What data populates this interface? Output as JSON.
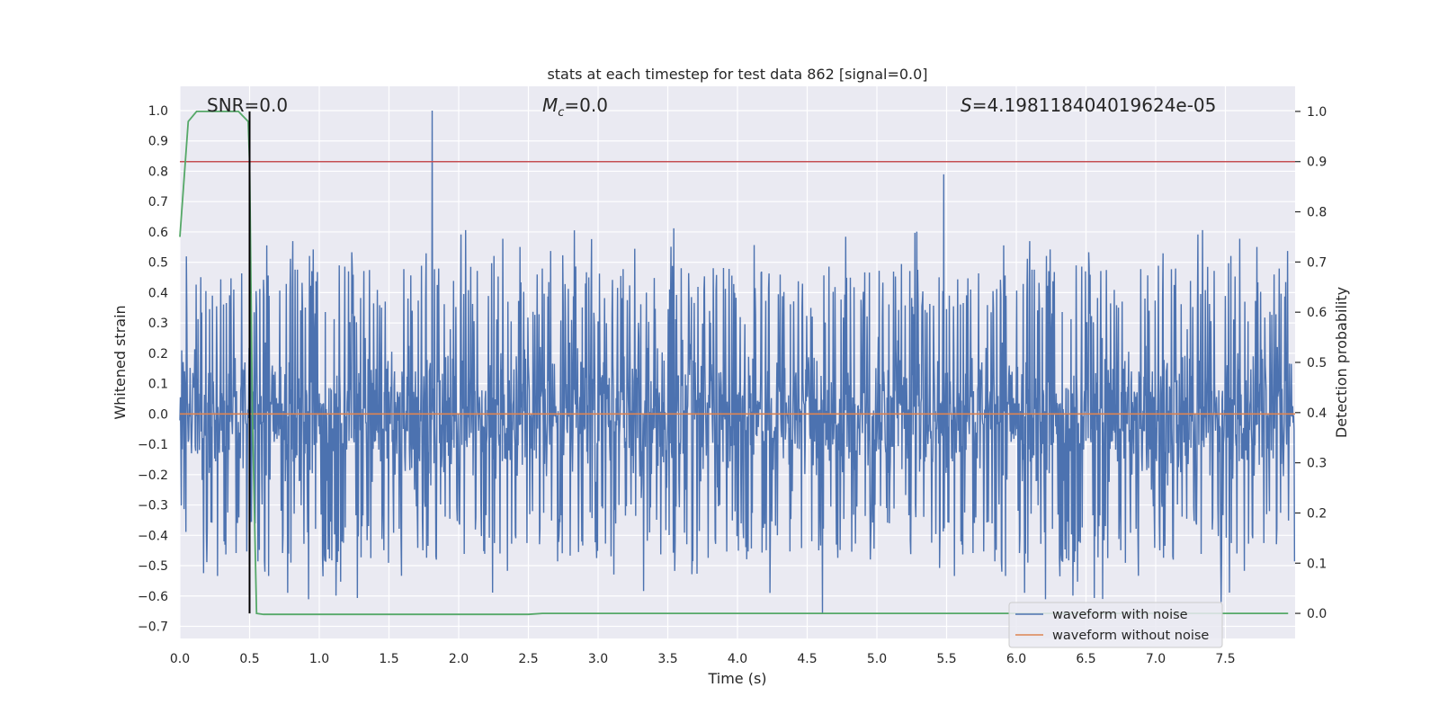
{
  "chart_data": {
    "type": "line",
    "title": "stats at each timestep for test data 862 [signal=0.0]",
    "xlabel": "Time (s)",
    "ylabel": "Whitened strain",
    "y2label": "Detection probability",
    "xlim": [
      0.0,
      8.0
    ],
    "ylim": [
      -0.74,
      1.08
    ],
    "y2lim": [
      -0.05,
      1.05
    ],
    "xticks": [
      "0.0",
      "0.5",
      "1.0",
      "1.5",
      "2.0",
      "2.5",
      "3.0",
      "3.5",
      "4.0",
      "4.5",
      "5.0",
      "5.5",
      "6.0",
      "6.5",
      "7.0",
      "7.5"
    ],
    "yticks": [
      "−0.7",
      "−0.6",
      "−0.5",
      "−0.4",
      "−0.3",
      "−0.2",
      "−0.1",
      "0.0",
      "0.1",
      "0.2",
      "0.3",
      "0.4",
      "0.5",
      "0.6",
      "0.7",
      "0.8",
      "0.9",
      "1.0"
    ],
    "y2ticks": [
      "0.0",
      "0.1",
      "0.2",
      "0.3",
      "0.4",
      "0.5",
      "0.6",
      "0.7",
      "0.8",
      "0.9",
      "1.0"
    ],
    "annotations": {
      "snr": "SNR=0.0",
      "mc_symbol": "M",
      "mc_sub": "c",
      "mc_value": "=0.0",
      "s_symbol": "S",
      "s_value": "=4.198118404019624e-05"
    },
    "legend": {
      "position": "lower-right",
      "entries": [
        {
          "label": "waveform with noise",
          "color": "#4c72b0"
        },
        {
          "label": "waveform without noise",
          "color": "#dd8452"
        }
      ]
    },
    "series": [
      {
        "name": "waveform with noise",
        "color": "#4c72b0",
        "description": "dense noise between approx −0.35 and 0.35 with spikes",
        "typical_range": [
          -0.35,
          0.35
        ],
        "peaks": [
          {
            "x": 1.81,
            "y": 1.0
          },
          {
            "x": 5.48,
            "y": 0.79
          },
          {
            "x": 4.61,
            "y": -0.66
          },
          {
            "x": 7.47,
            "y": -0.62
          },
          {
            "x": 6.62,
            "y": -0.61
          }
        ]
      },
      {
        "name": "waveform without noise",
        "color": "#dd8452",
        "x": [
          0.0,
          8.0
        ],
        "y": [
          0.0,
          0.0
        ]
      },
      {
        "name": "detection probability",
        "axis": "right",
        "color": "#55a868",
        "x": [
          0.0,
          0.06,
          0.12,
          0.2,
          0.3,
          0.42,
          0.49,
          0.5,
          0.52,
          0.55,
          0.6,
          2.5,
          2.6,
          7.95
        ],
        "y": [
          0.75,
          0.98,
          1.0,
          1.0,
          1.0,
          1.0,
          0.98,
          0.9,
          0.4,
          0.0,
          -0.002,
          -0.002,
          0.0,
          0.0
        ]
      },
      {
        "name": "threshold",
        "axis": "right",
        "color": "#c44e52",
        "x": [
          0.0,
          8.0
        ],
        "y": [
          0.9,
          0.9
        ]
      },
      {
        "name": "trigger marker",
        "axis": "right",
        "color": "#000000",
        "x": [
          0.5,
          0.5
        ],
        "y": [
          0.0,
          1.0
        ]
      }
    ],
    "grid": true,
    "style": {
      "plot_bg": "#eaeaf2",
      "grid_color": "#ffffff",
      "text_color": "#262626"
    }
  }
}
